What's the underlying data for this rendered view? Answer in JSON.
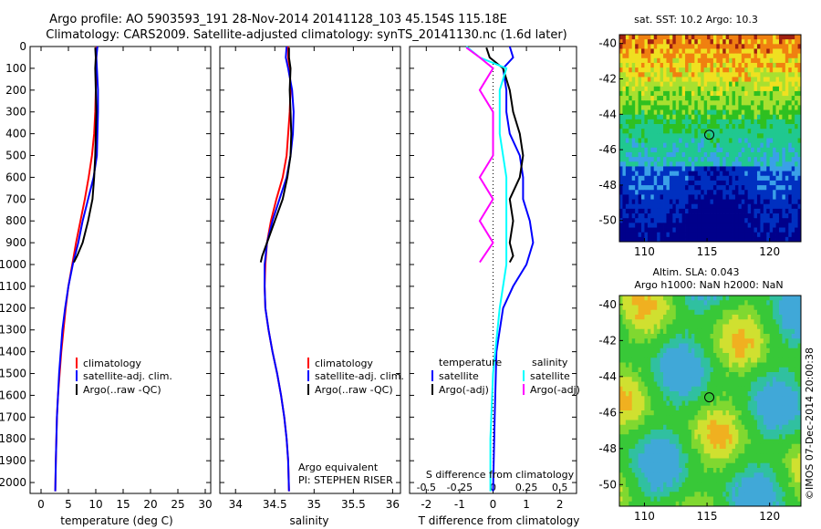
{
  "header": {
    "title_line1": "Argo profile: AO 5903593_191 28-Nov-2014 20141128_103 45.154S 115.18E",
    "title_line2": "Climatology: CARS2009. Satellite-adjusted climatology: synTS_20141130.nc (1.6d later)"
  },
  "colors": {
    "climatology": "#ff0000",
    "satellite": "#0000ff",
    "argo": "#000000",
    "sal_satellite": "#00ffff",
    "sal_argo": "#ff00ff"
  },
  "chart_data": [
    {
      "type": "line",
      "id": "temperature",
      "xlabel": "temperature (deg C)",
      "ylabel": "",
      "xlim": [
        -2,
        31
      ],
      "ylim": [
        2050,
        0
      ],
      "xticks": [
        "0",
        "5",
        "10",
        "15",
        "20",
        "25",
        "30"
      ],
      "yticks": [
        "0",
        "100",
        "200",
        "300",
        "400",
        "500",
        "600",
        "700",
        "800",
        "900",
        "1000",
        "1100",
        "1200",
        "1300",
        "1400",
        "1500",
        "1600",
        "1700",
        "1800",
        "1900",
        "2000"
      ],
      "legend": [
        "climatology",
        "satellite-adj. clim.",
        "Argo(..raw -QC)"
      ],
      "series": [
        {
          "name": "climatology",
          "color": "#ff0000",
          "x": [
            10.1,
            10.1,
            10.0,
            10.0,
            9.9,
            9.7,
            9.3,
            8.7,
            8.0,
            7.2,
            6.4,
            5.7,
            5.0,
            4.5,
            4.1,
            3.7,
            3.4,
            3.1,
            2.9,
            2.8,
            2.7,
            2.6
          ],
          "y": [
            0,
            50,
            100,
            200,
            300,
            400,
            500,
            600,
            700,
            800,
            900,
            1000,
            1100,
            1200,
            1300,
            1400,
            1500,
            1600,
            1700,
            1800,
            1900,
            2040
          ]
        },
        {
          "name": "satellite-adj. clim.",
          "color": "#0000ff",
          "x": [
            10.3,
            10.1,
            10.2,
            10.4,
            10.4,
            10.3,
            10.2,
            9.6,
            8.6,
            7.6,
            6.8,
            5.8,
            5.0,
            4.4,
            3.9,
            3.6,
            3.3,
            3.1,
            2.9,
            2.8,
            2.7,
            2.6
          ],
          "y": [
            0,
            50,
            100,
            200,
            300,
            400,
            500,
            600,
            700,
            800,
            900,
            1000,
            1100,
            1200,
            1300,
            1400,
            1500,
            1600,
            1700,
            1800,
            1900,
            2040
          ]
        },
        {
          "name": "Argo(..raw -QC)",
          "color": "#000000",
          "x": [
            9.9,
            10.0,
            9.9,
            10.0,
            10.1,
            10.0,
            9.9,
            9.7,
            9.4,
            8.6,
            7.6,
            6.6,
            6.0
          ],
          "y": [
            5,
            50,
            100,
            200,
            300,
            400,
            500,
            600,
            700,
            800,
            900,
            960,
            990
          ]
        }
      ]
    },
    {
      "type": "line",
      "id": "salinity",
      "xlabel": "salinity",
      "ylabel": "",
      "xlim": [
        33.8,
        36.1
      ],
      "ylim": [
        2050,
        0
      ],
      "xticks": [
        "34",
        "34.5",
        "35",
        "35.5",
        "36"
      ],
      "legend": [
        "climatology",
        "satellite-adj. clim.",
        "Argo(..raw -QC)"
      ],
      "annotations": [
        "Argo equivalent",
        "PI: STEPHEN RISER"
      ],
      "series": [
        {
          "name": "climatology",
          "color": "#ff0000",
          "x": [
            34.67,
            34.67,
            34.69,
            34.7,
            34.69,
            34.67,
            34.65,
            34.6,
            34.52,
            34.45,
            34.4,
            34.38,
            34.37,
            34.38,
            34.42,
            34.47,
            34.53,
            34.58,
            34.62,
            34.65,
            34.67,
            34.68
          ],
          "y": [
            0,
            50,
            100,
            200,
            300,
            400,
            500,
            600,
            700,
            800,
            900,
            1000,
            1100,
            1200,
            1300,
            1400,
            1500,
            1600,
            1700,
            1800,
            1900,
            2040
          ]
        },
        {
          "name": "satellite-adj. clim.",
          "color": "#0000ff",
          "x": [
            34.65,
            34.64,
            34.67,
            34.72,
            34.74,
            34.73,
            34.7,
            34.65,
            34.56,
            34.47,
            34.4,
            34.37,
            34.37,
            34.38,
            34.42,
            34.47,
            34.53,
            34.58,
            34.62,
            34.65,
            34.67,
            34.68
          ],
          "y": [
            0,
            50,
            100,
            200,
            300,
            400,
            500,
            600,
            700,
            800,
            900,
            1000,
            1100,
            1200,
            1300,
            1400,
            1500,
            1600,
            1700,
            1800,
            1900,
            2040
          ]
        },
        {
          "name": "Argo(..raw -QC)",
          "color": "#000000",
          "x": [
            34.68,
            34.68,
            34.7,
            34.69,
            34.7,
            34.71,
            34.7,
            34.66,
            34.6,
            34.5,
            34.4,
            34.34,
            34.32
          ],
          "y": [
            5,
            50,
            100,
            200,
            300,
            400,
            500,
            600,
            700,
            800,
            900,
            960,
            990
          ]
        }
      ]
    },
    {
      "type": "line",
      "id": "difference",
      "xlabel": "T difference from climatology",
      "xlabel_top": "S difference from climatology",
      "xlim": [
        -2.5,
        2.5
      ],
      "ylim": [
        2050,
        0
      ],
      "xticks": [
        "-2",
        "-1",
        "0",
        "1",
        "2"
      ],
      "xticks_top": [
        "-0.5",
        "-0.25",
        "0",
        "0.25",
        "0.5"
      ],
      "legend_titles": [
        "temperature",
        "salinity"
      ],
      "legend": [
        "satellite",
        "Argo(-adj)",
        "satellite",
        "Argo(-adj)"
      ],
      "series": [
        {
          "name": "satellite",
          "color": "#0000ff",
          "x": [
            0.5,
            0.6,
            0.3,
            0.4,
            0.4,
            0.5,
            0.8,
            0.9,
            0.9,
            1.1,
            1.2,
            1.0,
            0.6,
            0.3,
            0.1,
            0.05,
            0.0
          ],
          "y": [
            0,
            50,
            100,
            200,
            300,
            400,
            500,
            600,
            700,
            800,
            900,
            1000,
            1100,
            1200,
            1400,
            1700,
            2040
          ]
        },
        {
          "name": "Argo(-adj)",
          "color": "#000000",
          "x": [
            -0.2,
            -0.1,
            0.3,
            0.5,
            0.6,
            0.8,
            0.9,
            0.8,
            0.5,
            0.6,
            0.5,
            0.6,
            0.5
          ],
          "y": [
            5,
            50,
            100,
            200,
            300,
            400,
            500,
            600,
            700,
            800,
            900,
            960,
            990
          ]
        },
        {
          "name": "satellite",
          "color": "#00ffff",
          "x": [
            -0.2,
            -0.1,
            0.1,
            0.05,
            0.05,
            0.1,
            0.1,
            0.1,
            0.05,
            0.0,
            -0.02,
            -0.02
          ],
          "y": [
            0,
            50,
            100,
            200,
            400,
            600,
            800,
            1000,
            1200,
            1500,
            1800,
            2040
          ]
        },
        {
          "name": "Argo(-adj)",
          "color": "#ff00ff",
          "x": [
            -0.2,
            -0.1,
            0.0,
            -0.1,
            0.0,
            0.0,
            0.0,
            -0.1,
            0.0,
            -0.1,
            0.0,
            -0.1
          ],
          "y": [
            5,
            50,
            100,
            200,
            300,
            400,
            500,
            600,
            700,
            800,
            900,
            990
          ]
        }
      ]
    },
    {
      "type": "heatmap",
      "id": "sst-map",
      "title": "sat. SST: 10.2  Argo: 10.3",
      "xticks": [
        "110",
        "115",
        "120"
      ],
      "yticks": [
        "-40",
        "-42",
        "-44",
        "-46",
        "-48",
        "-50"
      ],
      "xlim": [
        108,
        122.5
      ],
      "ylim": [
        -51.2,
        -39.5
      ],
      "marker": {
        "lon": 115.18,
        "lat": -45.154
      }
    },
    {
      "type": "heatmap",
      "id": "sla-map",
      "title": "Altim. SLA: 0.043",
      "subtitle": "Argo h1000: NaN h2000: NaN",
      "xticks": [
        "110",
        "115",
        "120"
      ],
      "yticks": [
        "-40",
        "-42",
        "-44",
        "-46",
        "-48",
        "-50"
      ],
      "xlim": [
        108,
        122.5
      ],
      "ylim": [
        -51.2,
        -39.5
      ],
      "marker": {
        "lon": 115.18,
        "lat": -45.154
      }
    }
  ],
  "footer": {
    "stamp": "©IMOS 07-Dec-2014 20:00:38"
  }
}
